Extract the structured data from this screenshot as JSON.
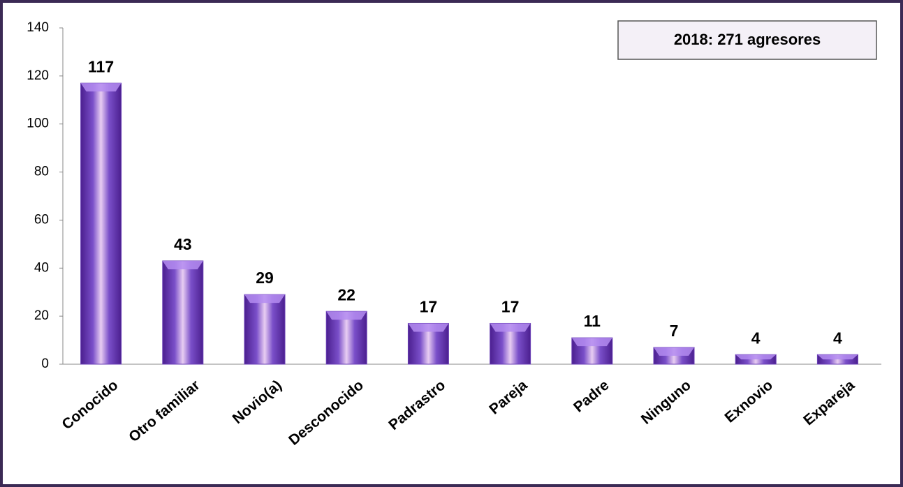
{
  "chart_data": {
    "type": "bar",
    "annotation": "2018:  271  agresores",
    "categories": [
      "Conocido",
      "Otro familiar",
      "Novio(a)",
      "Desconocido",
      "Padrastro",
      "Pareja",
      "Padre",
      "Ninguno",
      "Exnovio",
      "Expareja"
    ],
    "values": [
      117,
      43,
      29,
      22,
      17,
      17,
      11,
      7,
      4,
      4
    ],
    "color": "#6a3fb5",
    "ylim": [
      0,
      140
    ],
    "yticks": [
      0,
      20,
      40,
      60,
      80,
      100,
      120,
      140
    ],
    "grid": false
  }
}
